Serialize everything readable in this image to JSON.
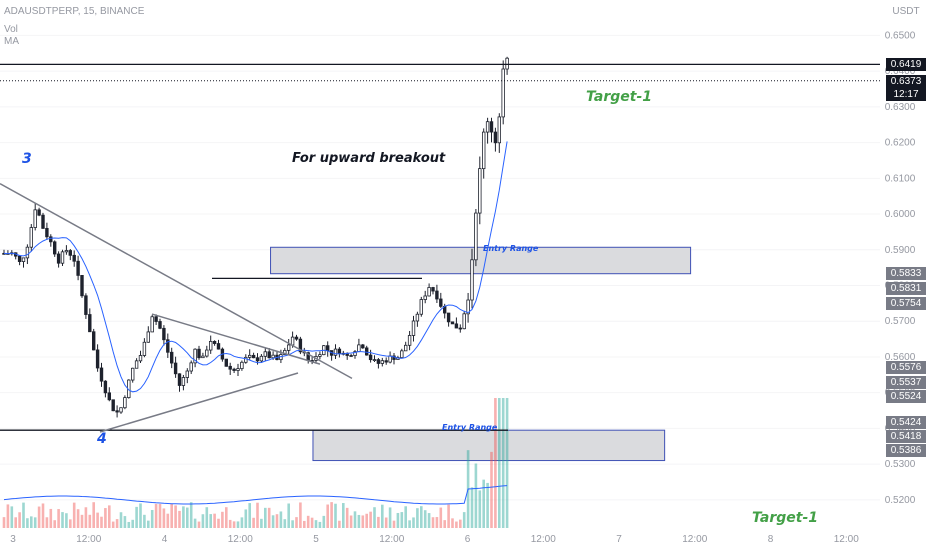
{
  "header": {
    "symbol": "ADAUSDTPERP, 15, BINANCE",
    "vol": "Vol",
    "ma": "MA"
  },
  "colors": {
    "up": "#26a69a",
    "down": "#ef5350",
    "candle": "#1e222d",
    "ma": "#2962ff",
    "green_text": "#43a047",
    "blue_text": "#1e53e5"
  },
  "chart_data": {
    "type": "candlestick",
    "title": "ADAUSDTPERP, 15, BINANCE",
    "y_axis": {
      "unit": "USDT",
      "range": [
        0.511,
        0.656
      ],
      "ticks": [
        "0.6500",
        "0.6400",
        "0.6300",
        "0.6200",
        "0.6100",
        "0.6000",
        "0.5900",
        "0.5800",
        "0.5700",
        "0.5600",
        "0.5500",
        "0.5400",
        "0.5300",
        "0.5200"
      ]
    },
    "x_axis": {
      "ticks": [
        "3",
        "12:00",
        "4",
        "12:00",
        "5",
        "12:00",
        "6",
        "12:00",
        "7",
        "12:00",
        "8",
        "12:00"
      ]
    },
    "price_series": [
      {
        "x": 0.0,
        "y": 0.589
      },
      {
        "x": 0.05,
        "y": 0.586
      },
      {
        "x": 0.1,
        "y": 0.592
      },
      {
        "x": 0.15,
        "y": 0.6025
      },
      {
        "x": 0.2,
        "y": 0.596
      },
      {
        "x": 0.25,
        "y": 0.592
      },
      {
        "x": 0.3,
        "y": 0.587
      },
      {
        "x": 0.35,
        "y": 0.59
      },
      {
        "x": 0.4,
        "y": 0.588
      },
      {
        "x": 0.45,
        "y": 0.578
      },
      {
        "x": 0.5,
        "y": 0.569
      },
      {
        "x": 0.55,
        "y": 0.558
      },
      {
        "x": 0.6,
        "y": 0.552
      },
      {
        "x": 0.65,
        "y": 0.546
      },
      {
        "x": 0.7,
        "y": 0.544
      },
      {
        "x": 0.75,
        "y": 0.551
      },
      {
        "x": 0.8,
        "y": 0.558
      },
      {
        "x": 0.85,
        "y": 0.561
      },
      {
        "x": 0.92,
        "y": 0.572
      },
      {
        "x": 0.97,
        "y": 0.568
      },
      {
        "x": 1.0,
        "y": 0.564
      },
      {
        "x": 1.05,
        "y": 0.558
      },
      {
        "x": 1.1,
        "y": 0.552
      },
      {
        "x": 1.15,
        "y": 0.556
      },
      {
        "x": 1.2,
        "y": 0.562
      },
      {
        "x": 1.25,
        "y": 0.559
      },
      {
        "x": 1.3,
        "y": 0.565
      },
      {
        "x": 1.35,
        "y": 0.562
      },
      {
        "x": 1.4,
        "y": 0.558
      },
      {
        "x": 1.45,
        "y": 0.556
      },
      {
        "x": 1.5,
        "y": 0.558
      },
      {
        "x": 1.55,
        "y": 0.56
      },
      {
        "x": 1.6,
        "y": 0.559
      },
      {
        "x": 1.65,
        "y": 0.561
      },
      {
        "x": 1.7,
        "y": 0.56
      },
      {
        "x": 1.75,
        "y": 0.559
      },
      {
        "x": 1.8,
        "y": 0.562
      },
      {
        "x": 1.85,
        "y": 0.566
      },
      {
        "x": 1.9,
        "y": 0.562
      },
      {
        "x": 1.95,
        "y": 0.559
      },
      {
        "x": 2.0,
        "y": 0.56
      },
      {
        "x": 2.05,
        "y": 0.563
      },
      {
        "x": 2.1,
        "y": 0.561
      },
      {
        "x": 2.15,
        "y": 0.562
      },
      {
        "x": 2.2,
        "y": 0.56
      },
      {
        "x": 2.25,
        "y": 0.562
      },
      {
        "x": 2.3,
        "y": 0.564
      },
      {
        "x": 2.35,
        "y": 0.56
      },
      {
        "x": 2.4,
        "y": 0.558
      },
      {
        "x": 2.45,
        "y": 0.559
      },
      {
        "x": 2.5,
        "y": 0.56
      },
      {
        "x": 2.55,
        "y": 0.56
      },
      {
        "x": 2.6,
        "y": 0.564
      },
      {
        "x": 2.65,
        "y": 0.57
      },
      {
        "x": 2.7,
        "y": 0.576
      },
      {
        "x": 2.75,
        "y": 0.58
      },
      {
        "x": 2.8,
        "y": 0.577
      },
      {
        "x": 2.85,
        "y": 0.572
      },
      {
        "x": 2.9,
        "y": 0.569
      },
      {
        "x": 2.95,
        "y": 0.568
      },
      {
        "x": 3.0,
        "y": 0.576
      },
      {
        "x": 3.03,
        "y": 0.588
      },
      {
        "x": 3.06,
        "y": 0.604
      },
      {
        "x": 3.09,
        "y": 0.615
      },
      {
        "x": 3.12,
        "y": 0.628
      },
      {
        "x": 3.15,
        "y": 0.625
      },
      {
        "x": 3.18,
        "y": 0.62
      },
      {
        "x": 3.21,
        "y": 0.627
      },
      {
        "x": 3.24,
        "y": 0.6419
      }
    ],
    "price_labels": [
      {
        "value": "0.6419",
        "color": "#131722",
        "text": ""
      },
      {
        "value": "0.6373",
        "color": "#131722",
        "text": "12:17"
      },
      {
        "value": "0.5833",
        "color": "#787b86",
        "text": ""
      },
      {
        "value": "0.5831",
        "color": "#787b86",
        "text": ""
      },
      {
        "value": "0.5754",
        "color": "#787b86",
        "text": ""
      },
      {
        "value": "0.5576",
        "color": "#787b86",
        "text": ""
      },
      {
        "value": "0.5537",
        "color": "#787b86",
        "text": ""
      },
      {
        "value": "0.5524",
        "color": "#787b86",
        "text": ""
      },
      {
        "value": "0.5424",
        "color": "#787b86",
        "text": ""
      },
      {
        "value": "0.5418",
        "color": "#787b86",
        "text": ""
      },
      {
        "value": "0.5386",
        "color": "#787b86",
        "text": ""
      }
    ],
    "annotations": [
      {
        "text": "3",
        "kind": "wave"
      },
      {
        "text": "4",
        "kind": "wave"
      },
      {
        "text": "For upward breakout",
        "kind": "note"
      },
      {
        "text": "Target-1",
        "kind": "target"
      },
      {
        "text": "Target-1",
        "kind": "target"
      },
      {
        "text": "Entry Range",
        "kind": "zone"
      },
      {
        "text": "Entry Range",
        "kind": "zone"
      }
    ],
    "zones": [
      {
        "name": "Entry Range",
        "price_low": 0.5833,
        "price_high": 0.5907,
        "x_start": 2.03,
        "x_end": 5.47
      },
      {
        "name": "Entry Range",
        "price_low": 0.531,
        "price_high": 0.5395,
        "x_start": 2.31,
        "x_end": 5.19
      }
    ],
    "horizontal_lines": [
      {
        "price": 0.6419,
        "style": "solid"
      },
      {
        "price": 0.6373,
        "style": "dotted"
      },
      {
        "price": 0.582,
        "style": "solid"
      },
      {
        "price": 0.5395,
        "style": "solid"
      }
    ]
  }
}
